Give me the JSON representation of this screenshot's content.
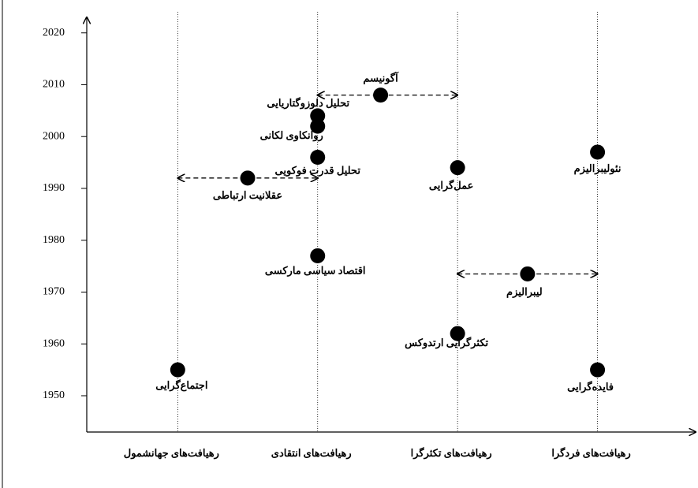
{
  "chart_data": {
    "type": "scatter",
    "xlim": [
      -0.65,
      3.69
    ],
    "xticks": [
      {
        "value": 0,
        "label": "رهیافت‌های جهانشمول"
      },
      {
        "value": 1,
        "label": "رهیافت‌های انتقادی"
      },
      {
        "value": 2,
        "label": "رهیافت‌های تکثرگرا"
      },
      {
        "value": 3,
        "label": "رهیافت‌های فردگرا"
      }
    ],
    "ylim": [
      1943,
      2023
    ],
    "yticks": [
      1950,
      1960,
      1970,
      1980,
      1990,
      2000,
      2010,
      2020
    ],
    "grid": true,
    "color": "#000000",
    "points": {
      "labels": [
        "اجتماع‌گرایی",
        "عقلانیت ارتباطی",
        "تحلیل قدرت فوکویی",
        "روانکاوی لکانی",
        "تحلیل دلوزوگتاریایی",
        "اقتصاد سیاسی مارکسی",
        "آگونیسم",
        "عمل‌گرایی",
        "تکثرگرایی ارتدوکس",
        "لیبرالیزم",
        "نئولیبرالیزم",
        "فایده‌گرایی"
      ],
      "x": [
        0,
        0.5,
        1,
        1,
        1,
        1,
        1.45,
        2,
        2,
        2.5,
        3,
        3
      ],
      "y": [
        1955,
        1992,
        1996,
        2002,
        2004,
        1977,
        2008,
        1994,
        1962,
        1973.5,
        1997,
        1955
      ]
    },
    "ranges": [
      {
        "x": [
          0,
          1
        ],
        "y": 1992
      },
      {
        "x": [
          1,
          2
        ],
        "y": 2008
      },
      {
        "x": [
          2,
          3
        ],
        "y": 1973.5
      }
    ]
  }
}
